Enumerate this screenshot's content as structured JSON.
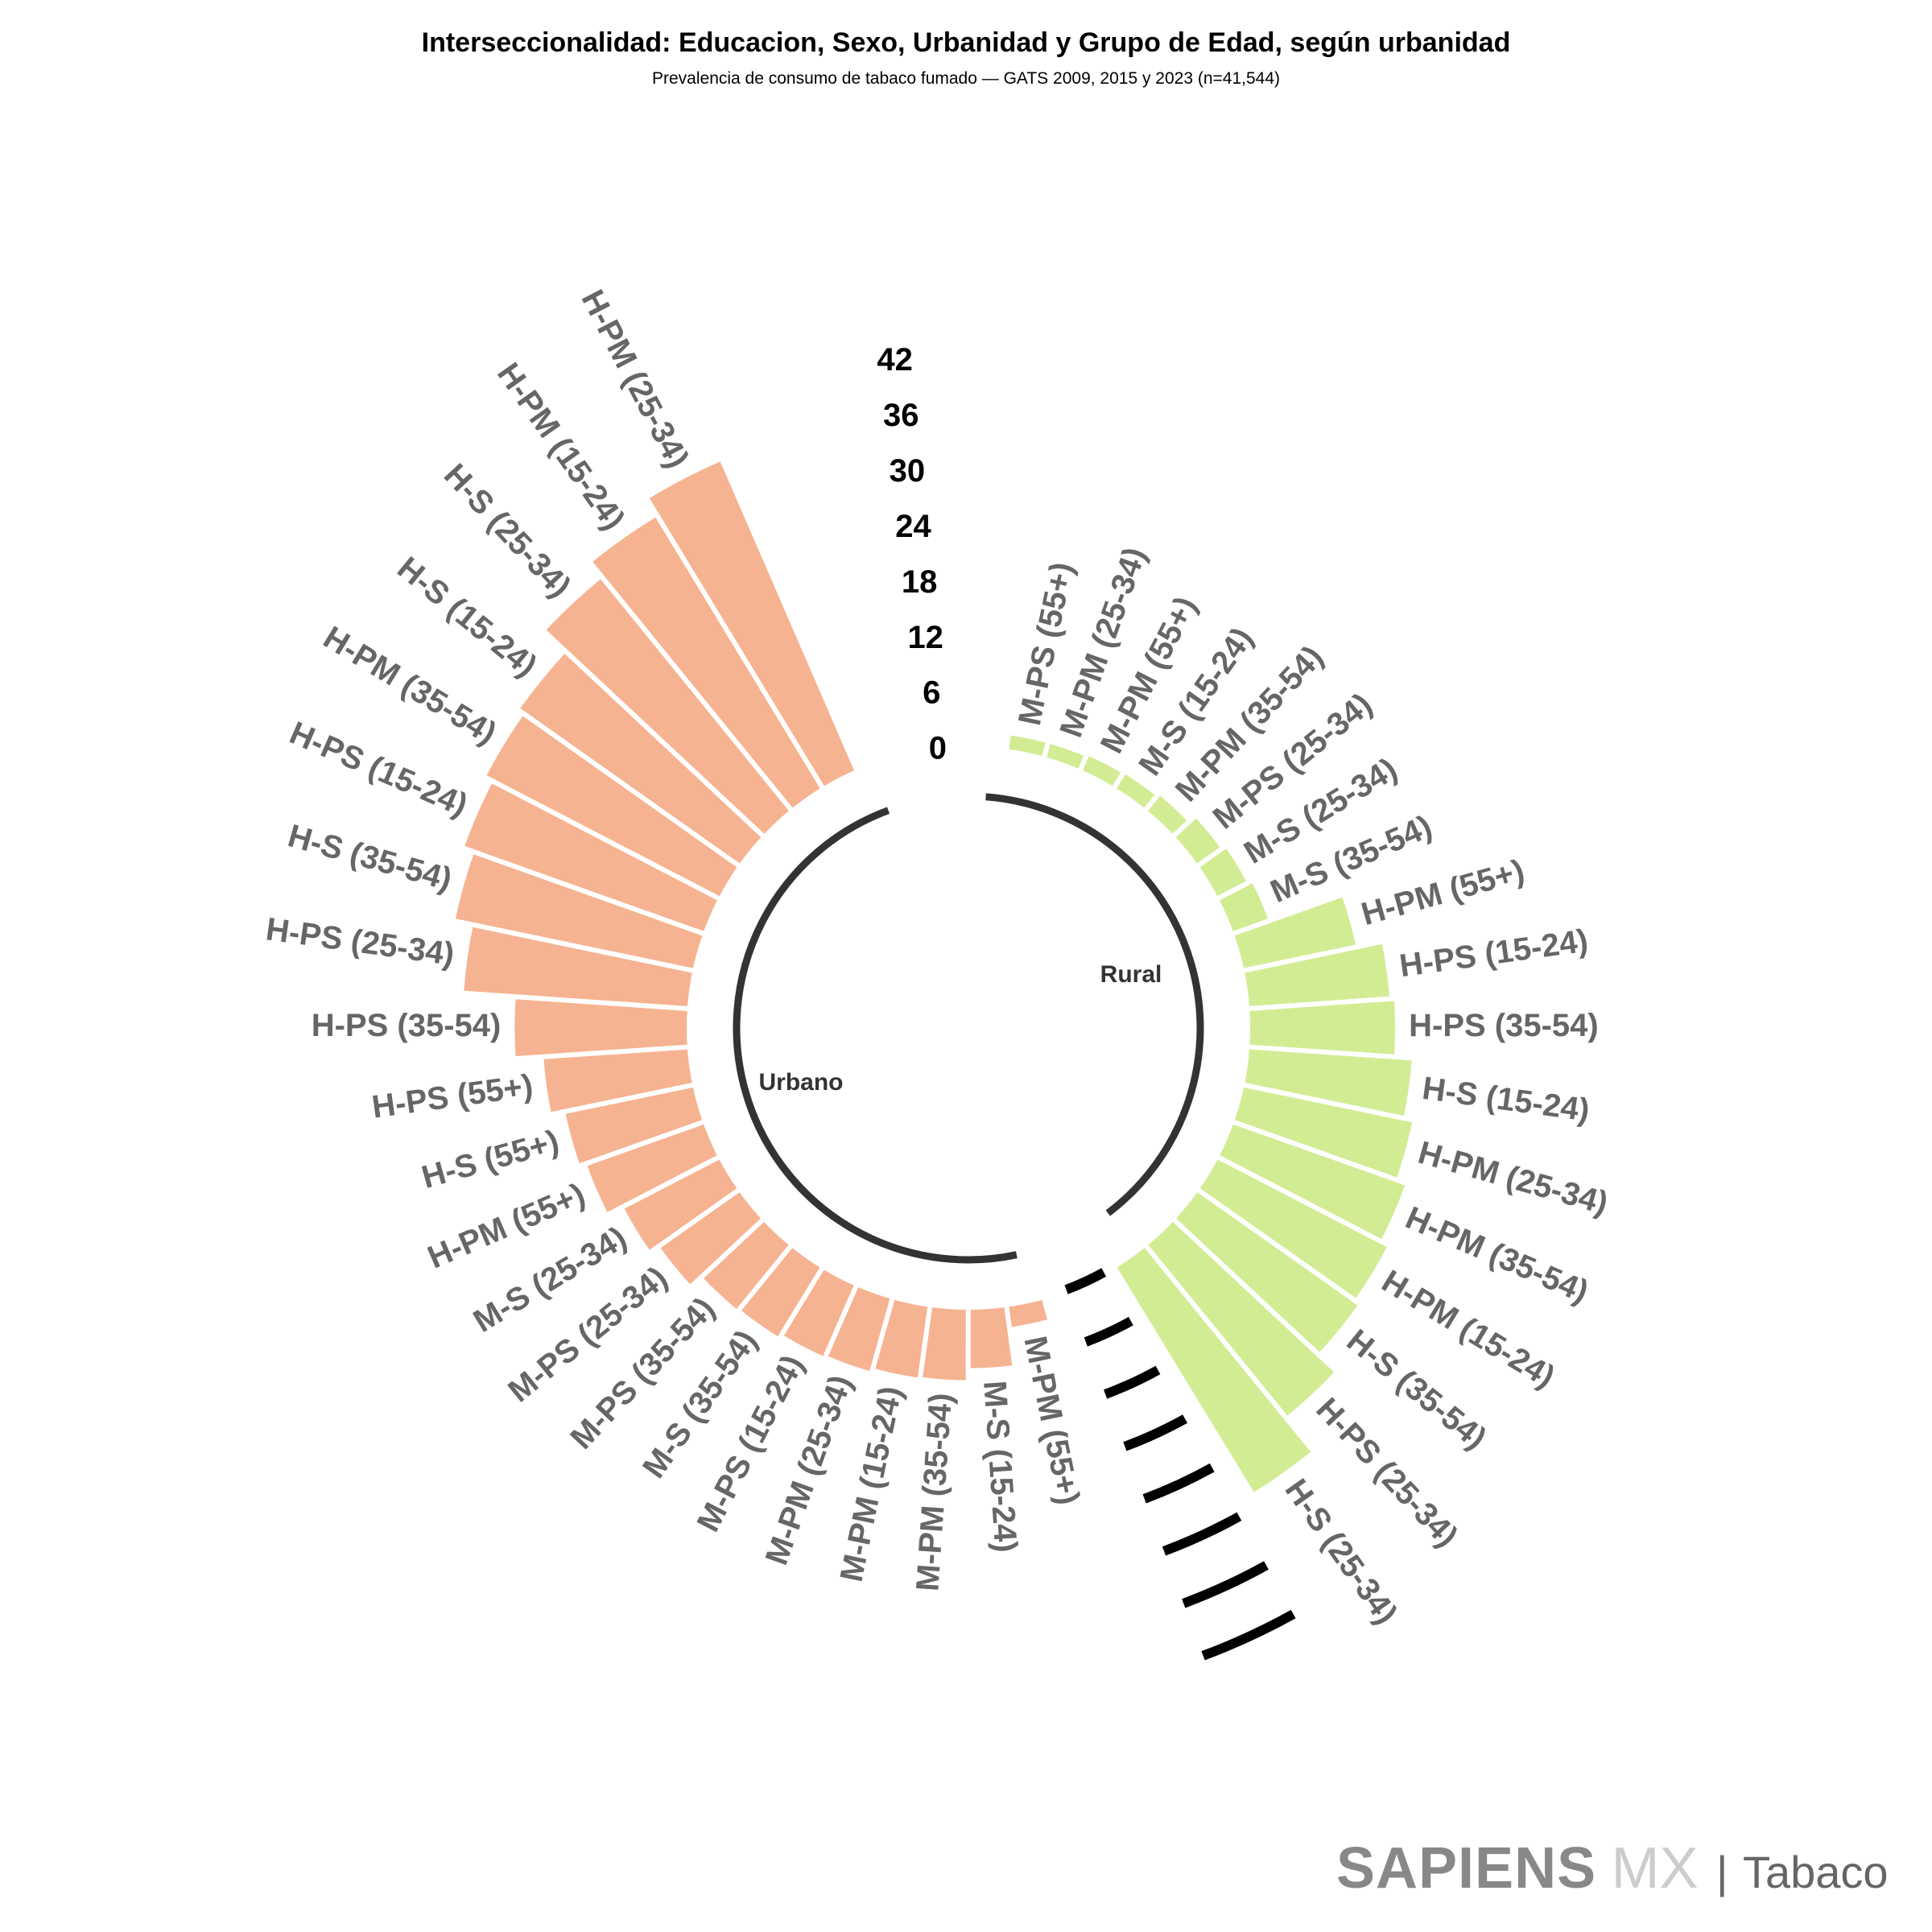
{
  "chart_data": {
    "type": "bar",
    "layout": "circular",
    "title": "Interseccionalidad: Educacion, Sexo, Urbanidad y Grupo de Edad, según urbanidad",
    "subtitle": "Prevalencia de consumo de tabaco fumado — GATS 2009, 2015 y 2023 (n=41,544)",
    "xlabel": "",
    "ylabel": "",
    "ylim": [
      0,
      42
    ],
    "y_ticks": [
      "0",
      "6",
      "12",
      "18",
      "24",
      "30",
      "36",
      "42"
    ],
    "grid": true,
    "series": [
      {
        "name": "Rural",
        "color": "#D2EC94",
        "labels": [
          "M-PS (55+)",
          "M-PM (25-34)",
          "M-PM (55+)",
          "M-S (15-24)",
          "M-PM (35-54)",
          "M-PS (25-34)",
          "M-S (25-34)",
          "M-S (35-54)",
          "H-PM (55+)",
          "H-PS (15-24)",
          "H-PS (35-54)",
          "H-S (15-24)",
          "H-PM (25-34)",
          "H-PM (35-54)",
          "H-PM (15-24)",
          "H-S (35-54)",
          "H-PS (25-34)",
          "H-S (25-34)"
        ],
        "values": [
          2.0,
          2.0,
          2.2,
          2.3,
          2.6,
          3.5,
          4.0,
          4.5,
          12.8,
          15.6,
          16.1,
          18.0,
          19.0,
          20.1,
          21.0,
          21.6,
          24.2,
          28.8
        ]
      },
      {
        "name": "Urbano",
        "color": "#F6B391",
        "labels": [
          "M-PM (55+)",
          "M-S (15-24)",
          "M-PM (35-54)",
          "M-PM (15-24)",
          "M-PM (25-34)",
          "M-PS (15-24)",
          "M-S (35-54)",
          "M-PS (35-54)",
          "M-PS (25-34)",
          "M-S (25-34)",
          "H-PM (55+)",
          "H-S (55+)",
          "H-PS (55+)",
          "H-PS (35-54)",
          "H-PS (25-34)",
          "H-S (35-54)",
          "H-PS (15-24)",
          "H-PM (35-54)",
          "H-S (15-24)",
          "H-S (25-34)",
          "H-PM (15-24)",
          "H-PM (25-34)"
        ],
        "values": [
          2.7,
          6.8,
          8.1,
          8.2,
          8.6,
          8.8,
          9.2,
          9.4,
          10.9,
          12.0,
          13.8,
          14.5,
          16.0,
          19.0,
          24.6,
          26.6,
          27.8,
          28.7,
          29.4,
          32.6,
          34.6,
          36.7
        ]
      }
    ]
  },
  "branding": {
    "brand": "SAPIENS",
    "brand_suffix": "MX",
    "separator": "|",
    "section": "Tabaco"
  }
}
